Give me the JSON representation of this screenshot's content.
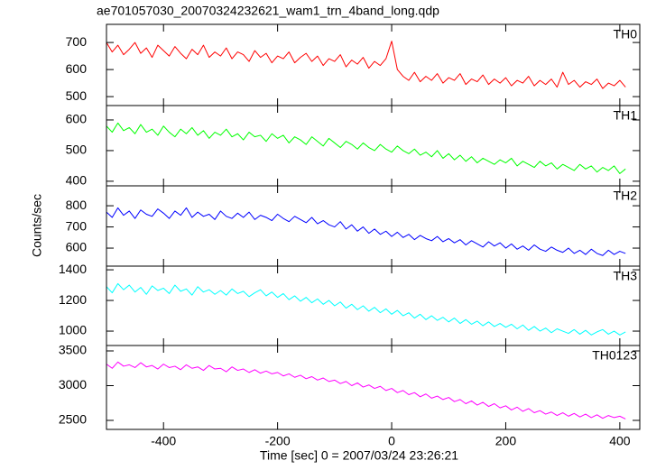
{
  "title": "ae701057030_20070324232621_wam1_trn_4band_long.qdp",
  "ylabel": "Counts/sec",
  "xlabel": "Time [sec] 0 = 2007/03/24 23:26:21",
  "xlim": [
    -500,
    435
  ],
  "xticks": [
    -400,
    -200,
    0,
    200,
    400
  ],
  "x": [
    -500,
    -490,
    -480,
    -470,
    -460,
    -450,
    -440,
    -430,
    -420,
    -410,
    -400,
    -390,
    -380,
    -370,
    -360,
    -350,
    -340,
    -330,
    -320,
    -310,
    -300,
    -290,
    -280,
    -270,
    -260,
    -250,
    -240,
    -230,
    -220,
    -210,
    -200,
    -190,
    -180,
    -170,
    -160,
    -150,
    -140,
    -130,
    -120,
    -110,
    -100,
    -90,
    -80,
    -70,
    -60,
    -50,
    -40,
    -30,
    -20,
    -10,
    0,
    10,
    20,
    30,
    40,
    50,
    60,
    70,
    80,
    90,
    100,
    110,
    120,
    130,
    140,
    150,
    160,
    170,
    180,
    190,
    200,
    210,
    220,
    230,
    240,
    250,
    260,
    270,
    280,
    290,
    300,
    310,
    320,
    330,
    340,
    350,
    360,
    370,
    380,
    390,
    400,
    410
  ],
  "chart_data": [
    {
      "type": "line",
      "ylim": [
        467,
        767
      ],
      "yticks": [
        500,
        600,
        700
      ],
      "series": [
        {
          "name": "TH0",
          "color": "#ff0000",
          "values": [
            700,
            665,
            690,
            655,
            675,
            700,
            660,
            680,
            645,
            690,
            670,
            650,
            685,
            660,
            640,
            675,
            655,
            690,
            645,
            665,
            650,
            680,
            640,
            665,
            655,
            630,
            670,
            645,
            660,
            625,
            650,
            640,
            665,
            625,
            645,
            660,
            630,
            650,
            615,
            640,
            630,
            655,
            610,
            635,
            620,
            645,
            605,
            630,
            615,
            640,
            705,
            600,
            575,
            560,
            590,
            555,
            575,
            560,
            585,
            550,
            570,
            560,
            585,
            545,
            565,
            555,
            580,
            545,
            565,
            550,
            570,
            540,
            560,
            550,
            575,
            540,
            560,
            545,
            565,
            535,
            590,
            545,
            560,
            535,
            555,
            545,
            565,
            530,
            550,
            540,
            560,
            535
          ]
        }
      ]
    },
    {
      "type": "line",
      "ylim": [
        385,
        647
      ],
      "yticks": [
        400,
        500,
        600
      ],
      "series": [
        {
          "name": "TH1",
          "color": "#00ff00",
          "values": [
            580,
            560,
            590,
            565,
            575,
            555,
            585,
            560,
            570,
            550,
            580,
            560,
            545,
            570,
            555,
            575,
            550,
            565,
            540,
            560,
            550,
            570,
            545,
            555,
            535,
            560,
            545,
            550,
            530,
            555,
            540,
            550,
            525,
            545,
            535,
            520,
            545,
            530,
            515,
            540,
            525,
            510,
            530,
            520,
            505,
            525,
            510,
            500,
            520,
            505,
            495,
            515,
            500,
            490,
            505,
            485,
            495,
            480,
            500,
            475,
            490,
            470,
            485,
            465,
            480,
            460,
            475,
            465,
            455,
            470,
            460,
            475,
            450,
            465,
            455,
            445,
            465,
            450,
            460,
            440,
            455,
            445,
            435,
            455,
            440,
            450,
            430,
            445,
            435,
            450,
            425,
            440
          ]
        }
      ]
    },
    {
      "type": "line",
      "ylim": [
        515,
        894
      ],
      "yticks": [
        600,
        700,
        800
      ],
      "series": [
        {
          "name": "TH2",
          "color": "#0000ff",
          "values": [
            770,
            745,
            790,
            755,
            775,
            740,
            780,
            760,
            750,
            785,
            765,
            740,
            775,
            755,
            790,
            745,
            770,
            750,
            760,
            735,
            775,
            750,
            740,
            765,
            745,
            770,
            735,
            755,
            745,
            730,
            760,
            740,
            725,
            750,
            735,
            720,
            745,
            715,
            730,
            710,
            700,
            725,
            690,
            710,
            680,
            700,
            670,
            690,
            665,
            680,
            655,
            675,
            650,
            665,
            640,
            660,
            645,
            635,
            655,
            630,
            645,
            625,
            640,
            615,
            635,
            620,
            605,
            630,
            610,
            625,
            600,
            620,
            595,
            610,
            590,
            615,
            595,
            585,
            605,
            590,
            580,
            600,
            575,
            590,
            570,
            595,
            575,
            565,
            590,
            570,
            585,
            575
          ]
        }
      ]
    },
    {
      "type": "line",
      "ylim": [
        906,
        1424
      ],
      "yticks": [
        1000,
        1200,
        1400
      ],
      "series": [
        {
          "name": "TH3",
          "color": "#00ffff",
          "values": [
            1290,
            1250,
            1310,
            1270,
            1300,
            1255,
            1285,
            1240,
            1295,
            1265,
            1280,
            1245,
            1300,
            1260,
            1275,
            1235,
            1290,
            1255,
            1270,
            1240,
            1265,
            1235,
            1275,
            1245,
            1260,
            1225,
            1250,
            1270,
            1230,
            1255,
            1220,
            1245,
            1205,
            1230,
            1195,
            1220,
            1185,
            1210,
            1175,
            1200,
            1165,
            1190,
            1150,
            1175,
            1140,
            1165,
            1130,
            1155,
            1120,
            1145,
            1110,
            1135,
            1100,
            1120,
            1085,
            1110,
            1075,
            1100,
            1070,
            1090,
            1060,
            1085,
            1050,
            1075,
            1045,
            1065,
            1035,
            1060,
            1030,
            1050,
            1025,
            1045,
            1015,
            1040,
            1005,
            1030,
            1000,
            1020,
            990,
            1015,
            1000,
            985,
            1010,
            980,
            1005,
            975,
            995,
            1010,
            980,
            1000,
            975,
            995
          ]
        }
      ]
    },
    {
      "type": "line",
      "ylim": [
        2370,
        3578
      ],
      "yticks": [
        2500,
        3000,
        3500
      ],
      "series": [
        {
          "name": "TH0123",
          "color": "#ff00ff",
          "values": [
            3310,
            3250,
            3340,
            3280,
            3300,
            3260,
            3330,
            3270,
            3290,
            3240,
            3310,
            3260,
            3280,
            3230,
            3300,
            3250,
            3270,
            3220,
            3290,
            3240,
            3250,
            3200,
            3270,
            3220,
            3240,
            3190,
            3230,
            3180,
            3210,
            3170,
            3190,
            3140,
            3170,
            3120,
            3150,
            3100,
            3130,
            3080,
            3110,
            3060,
            3080,
            3030,
            3060,
            3000,
            3040,
            2980,
            3010,
            2960,
            2990,
            2930,
            2960,
            2900,
            2930,
            2870,
            2900,
            2840,
            2880,
            2820,
            2850,
            2800,
            2830,
            2770,
            2800,
            2740,
            2780,
            2720,
            2760,
            2700,
            2740,
            2680,
            2710,
            2650,
            2690,
            2630,
            2670,
            2610,
            2640,
            2590,
            2620,
            2570,
            2610,
            2560,
            2600,
            2550,
            2590,
            2540,
            2580,
            2530,
            2570,
            2540,
            2560,
            2520
          ]
        }
      ]
    }
  ]
}
